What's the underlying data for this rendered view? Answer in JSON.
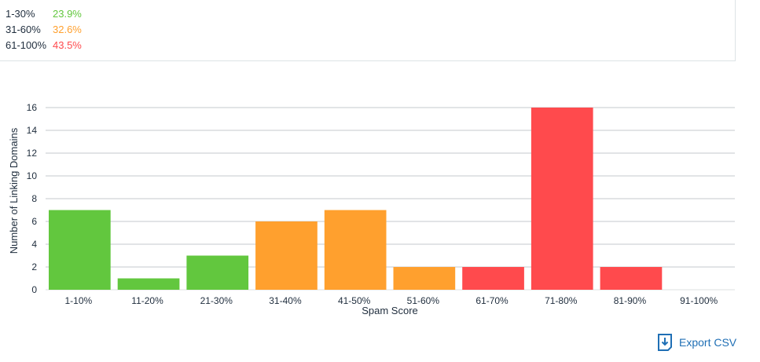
{
  "summary": [
    {
      "range": "1-30%",
      "percent": "23.9%",
      "color": "#62c73e"
    },
    {
      "range": "31-60%",
      "percent": "32.6%",
      "color": "#ffa02e"
    },
    {
      "range": "61-100%",
      "percent": "43.5%",
      "color": "#ff4a4d"
    }
  ],
  "chart_data": {
    "type": "bar",
    "categories": [
      "1-10%",
      "11-20%",
      "21-30%",
      "31-40%",
      "41-50%",
      "51-60%",
      "61-70%",
      "71-80%",
      "81-90%",
      "91-100%"
    ],
    "values": [
      7,
      1,
      3,
      6,
      7,
      2,
      2,
      16,
      2,
      0
    ],
    "colors": [
      "#62c73e",
      "#62c73e",
      "#62c73e",
      "#ffa02e",
      "#ffa02e",
      "#ffa02e",
      "#ff4a4d",
      "#ff4a4d",
      "#ff4a4d",
      "#ff4a4d"
    ],
    "xlabel": "Spam Score",
    "ylabel": "Number of Linking Domains",
    "ylim": [
      0,
      16
    ],
    "yticks": [
      0,
      2,
      4,
      6,
      8,
      10,
      12,
      14,
      16
    ],
    "grid": true
  },
  "export": {
    "label": "Export CSV",
    "icon": "download-file-icon"
  }
}
